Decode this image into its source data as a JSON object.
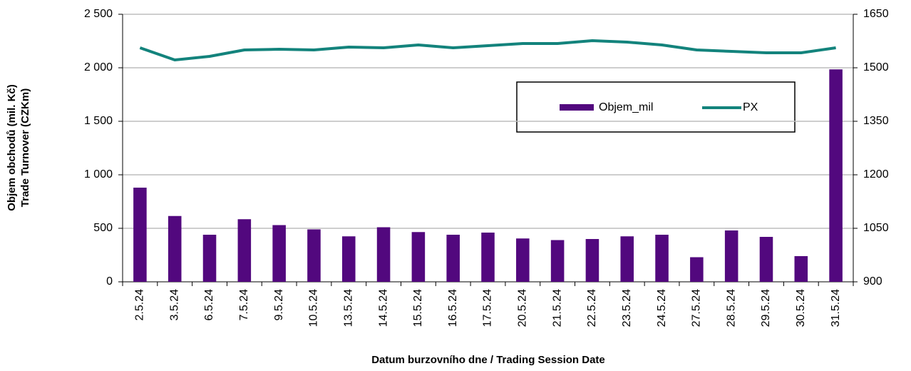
{
  "chart_data": {
    "type": "bar-line",
    "ylabel": [
      "Objem obchodů (mil. Kč)",
      "Trade Turnover (CZKm)"
    ],
    "xlabel": "Datum burzovního dne / Trading Session Date",
    "categories": [
      "2.5.24",
      "3.5.24",
      "6.5.24",
      "7.5.24",
      "9.5.24",
      "10.5.24",
      "13.5.24",
      "14.5.24",
      "15.5.24",
      "16.5.24",
      "17.5.24",
      "20.5.24",
      "21.5.24",
      "22.5.24",
      "23.5.24",
      "24.5.24",
      "27.5.24",
      "28.5.24",
      "29.5.24",
      "30.5.24",
      "31.5.24"
    ],
    "series": [
      {
        "name": "Objem_mil",
        "type": "bar",
        "color": "#52087e",
        "values": [
          880,
          615,
          440,
          585,
          530,
          490,
          425,
          510,
          465,
          440,
          460,
          405,
          390,
          400,
          425,
          440,
          230,
          480,
          420,
          240,
          1985
        ]
      },
      {
        "name": "PX",
        "type": "line",
        "axis": "y2",
        "color": "#13837c",
        "values": [
          1556,
          1522,
          1532,
          1550,
          1552,
          1550,
          1558,
          1556,
          1564,
          1556,
          1562,
          1568,
          1568,
          1576,
          1572,
          1564,
          1550,
          1546,
          1542,
          1542,
          1556
        ]
      }
    ],
    "ylim": [
      0,
      2500
    ],
    "yticks": [
      0,
      500,
      {
        "value": 1000,
        "label": "1 000"
      },
      {
        "value": 1500,
        "label": "1 500"
      },
      {
        "value": 2000,
        "label": "2 000"
      },
      {
        "value": 2500,
        "label": "2 500"
      }
    ],
    "y2lim": [
      900,
      1650
    ],
    "y2ticks": [
      900,
      1050,
      1200,
      1350,
      1500,
      1650
    ],
    "grid": true
  }
}
